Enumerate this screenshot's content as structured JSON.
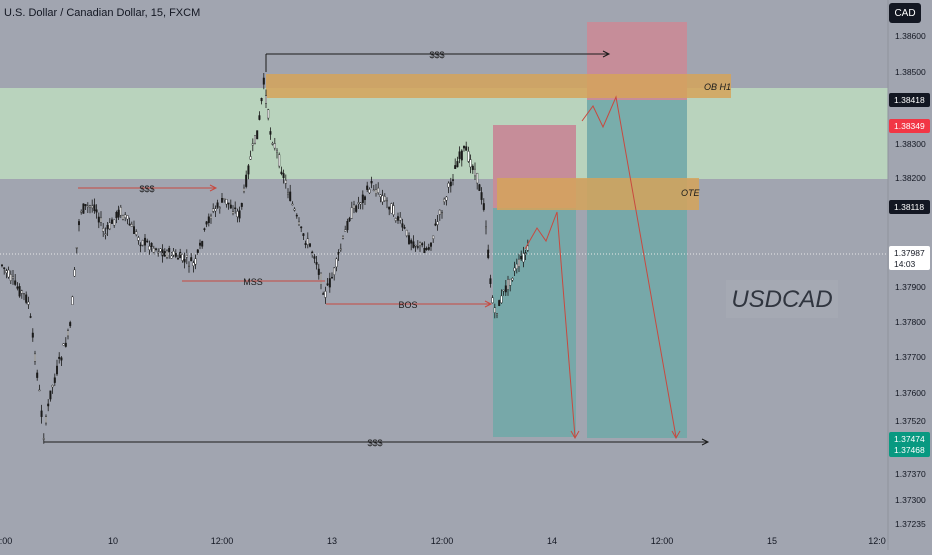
{
  "header": {
    "symbol_title": "U.S. Dollar / Canadian Dollar, 15, FXCM",
    "currency_button": "CAD"
  },
  "watermark": "USDCAD",
  "colors": {
    "background": "#a1a5b0",
    "candle": "#1a1a1a",
    "green_zone": "#b9d3bd",
    "orange_zone": "#d5a35a",
    "stop_zone": "#c68d99",
    "target_zone": "#72a8a8",
    "line_red": "#c8493f",
    "price_red": "#f23645",
    "price_teal": "#089981",
    "label_bg": "#131722"
  },
  "annotations": {
    "sss_top": "$$$",
    "sss_left": "$$$",
    "sss_bottom": "$$$",
    "mss": "MSS",
    "bos": "BOS",
    "ob_h1": "OB H1",
    "ote": "OTE"
  },
  "price_axis": {
    "ticks": [
      "1.38600",
      "1.38500",
      "1.38300",
      "1.38200",
      "1.38100",
      "1.37900",
      "1.37800",
      "1.37700",
      "1.37600",
      "1.37520",
      "1.37370",
      "1.37300",
      "1.37235"
    ],
    "partial_tick_1": "1.38400",
    "partial_tick_2": "1.38000"
  },
  "price_labels": {
    "ob_level": "1.38418",
    "last_red": "1.38349",
    "ote_level": "1.38118",
    "current": "1.37987",
    "countdown": "14:03",
    "low_1": "1.37474",
    "low_2": "1.37468"
  },
  "time_axis": {
    "labels": [
      ":00",
      "10",
      "12:00",
      "13",
      "12:00",
      "14",
      "12:00",
      "15",
      "12:0"
    ]
  },
  "chart_data": {
    "type": "candlestick",
    "symbol": "USDCAD",
    "interval": "15",
    "ylim": [
      1.3723,
      1.3865
    ],
    "levels": {
      "ob_h1_zone": [
        1.38418,
        1.3849
      ],
      "green_zone": [
        1.382,
        1.3845
      ],
      "ote_zone": [
        1.38118,
        1.382
      ],
      "mss": 1.37915,
      "bos": 1.3785,
      "sss_high": 1.3856,
      "sss_low": 1.37474,
      "sss_left": 1.3819,
      "current_price": 1.37987
    },
    "trade_setup_1": {
      "entry": 1.3811,
      "stop": 1.3835,
      "target": 1.3747
    },
    "trade_setup_2": {
      "entry": 1.3841,
      "stop": 1.3862,
      "target": 1.3747
    }
  }
}
